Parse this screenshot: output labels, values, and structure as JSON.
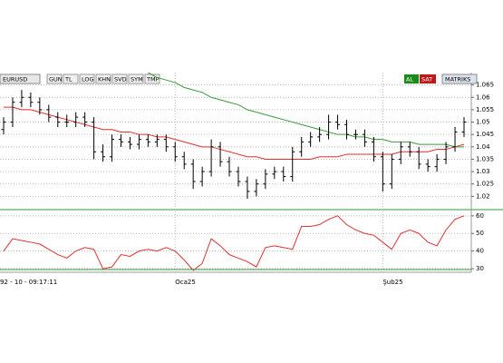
{
  "toolbar": {
    "symbol": "EURUSD",
    "buttons": [
      "GUN",
      "TL",
      "LOG",
      "KHN",
      "SVD",
      "SYM",
      "TMP"
    ],
    "actions": [
      "AL",
      "SAT"
    ],
    "brand": "MATRIKS"
  },
  "status": "92 - 10 - 09:17:11",
  "chart_data": [
    {
      "type": "ohlc",
      "color": "#000000",
      "categories": [
        null,
        null,
        null,
        null,
        null,
        null,
        null,
        null,
        null,
        null,
        null,
        null,
        null,
        null,
        null,
        null,
        null,
        null,
        null,
        "Oca25",
        null,
        null,
        null,
        null,
        null,
        null,
        null,
        null,
        null,
        null,
        null,
        null,
        null,
        null,
        null,
        null,
        null,
        null,
        null,
        null,
        null,
        null,
        "Şub25",
        null,
        null,
        null,
        null,
        null,
        null,
        null,
        null,
        null
      ],
      "open": [
        1.047,
        1.05,
        1.058,
        1.06,
        1.058,
        1.055,
        1.052,
        1.05,
        1.05,
        1.052,
        1.05,
        1.038,
        1.036,
        1.043,
        1.042,
        1.041,
        1.043,
        1.042,
        1.043,
        1.04,
        1.036,
        1.033,
        1.026,
        1.03,
        1.04,
        1.034,
        1.03,
        1.026,
        1.022,
        1.025,
        1.029,
        1.03,
        1.028,
        1.038,
        1.042,
        1.044,
        1.045,
        1.05,
        1.049,
        1.045,
        1.045,
        1.042,
        1.036,
        1.025,
        1.035,
        1.04,
        1.038,
        1.033,
        1.032,
        1.035,
        1.04,
        1.046
      ],
      "high": [
        1.052,
        1.06,
        1.063,
        1.062,
        1.06,
        1.057,
        1.054,
        1.053,
        1.054,
        1.054,
        1.052,
        1.041,
        1.045,
        1.045,
        1.044,
        1.045,
        1.045,
        1.045,
        1.045,
        1.042,
        1.038,
        1.035,
        1.032,
        1.043,
        1.042,
        1.036,
        1.032,
        1.028,
        1.027,
        1.031,
        1.032,
        1.032,
        1.04,
        1.044,
        1.046,
        1.048,
        1.053,
        1.053,
        1.051,
        1.047,
        1.047,
        1.044,
        1.038,
        1.037,
        1.042,
        1.042,
        1.04,
        1.035,
        1.037,
        1.042,
        1.048,
        1.052
      ],
      "low": [
        1.045,
        1.048,
        1.056,
        1.056,
        1.053,
        1.05,
        1.048,
        1.048,
        1.048,
        1.048,
        1.035,
        1.034,
        1.034,
        1.04,
        1.039,
        1.039,
        1.04,
        1.04,
        1.038,
        1.034,
        1.031,
        1.023,
        1.024,
        1.028,
        1.032,
        1.028,
        1.024,
        1.019,
        1.02,
        1.023,
        1.027,
        1.026,
        1.026,
        1.036,
        1.04,
        1.042,
        1.043,
        1.047,
        1.043,
        1.043,
        1.04,
        1.034,
        1.022,
        1.023,
        1.033,
        1.036,
        1.031,
        1.03,
        1.03,
        1.033,
        1.038,
        1.044
      ],
      "close": [
        1.05,
        1.058,
        1.06,
        1.058,
        1.055,
        1.052,
        1.05,
        1.05,
        1.052,
        1.05,
        1.038,
        1.036,
        1.043,
        1.042,
        1.041,
        1.043,
        1.042,
        1.043,
        1.04,
        1.036,
        1.033,
        1.026,
        1.03,
        1.04,
        1.034,
        1.03,
        1.026,
        1.022,
        1.025,
        1.029,
        1.03,
        1.028,
        1.038,
        1.042,
        1.044,
        1.045,
        1.05,
        1.049,
        1.045,
        1.045,
        1.042,
        1.036,
        1.025,
        1.035,
        1.04,
        1.038,
        1.033,
        1.032,
        1.035,
        1.04,
        1.046,
        1.05
      ],
      "lines": [
        {
          "color": "#e03030",
          "values": [
            1.056,
            1.056,
            1.055,
            1.055,
            1.054,
            1.053,
            1.052,
            1.051,
            1.05,
            1.049,
            1.048,
            1.047,
            1.047,
            1.046,
            1.046,
            1.045,
            1.045,
            1.044,
            1.044,
            1.043,
            1.042,
            1.041,
            1.04,
            1.04,
            1.039,
            1.038,
            1.037,
            1.036,
            1.036,
            1.035,
            1.035,
            1.035,
            1.035,
            1.035,
            1.035,
            1.036,
            1.036,
            1.036,
            1.037,
            1.037,
            1.037,
            1.037,
            1.037,
            1.037,
            1.038,
            1.038,
            1.038,
            1.038,
            1.039,
            1.039,
            1.04,
            1.041
          ]
        },
        {
          "color": "#3a9a3a",
          "values": [
            null,
            null,
            null,
            null,
            null,
            null,
            null,
            null,
            null,
            null,
            null,
            null,
            null,
            null,
            null,
            null,
            1.07,
            1.068,
            1.067,
            1.066,
            1.064,
            1.063,
            1.062,
            1.06,
            1.059,
            1.058,
            1.057,
            1.055,
            1.054,
            1.053,
            1.052,
            1.051,
            1.05,
            1.049,
            1.048,
            1.047,
            1.046,
            1.045,
            1.045,
            1.044,
            1.044,
            1.043,
            1.043,
            1.042,
            1.042,
            1.042,
            1.041,
            1.041,
            1.041,
            1.041,
            1.04,
            1.04
          ]
        }
      ],
      "ylim": [
        1.015,
        1.07
      ],
      "yticks": [
        1.02,
        1.025,
        1.03,
        1.035,
        1.04,
        1.045,
        1.05,
        1.055,
        1.06,
        1.065
      ],
      "grid": true
    },
    {
      "type": "line",
      "color": "#e03030",
      "values": [
        40,
        47,
        46,
        45,
        44,
        41,
        38,
        36,
        40,
        42,
        41,
        30,
        31,
        38,
        37,
        40,
        41,
        40,
        42,
        40,
        35,
        29,
        33,
        47,
        43,
        38,
        36,
        34,
        31,
        42,
        43,
        42,
        41,
        54,
        54,
        55,
        58,
        60,
        55,
        52,
        50,
        49,
        45,
        41,
        50,
        52,
        50,
        45,
        43,
        52,
        58,
        60
      ],
      "ylim": [
        29,
        63
      ],
      "yticks": [
        30,
        40,
        50,
        60
      ],
      "grid": true
    }
  ]
}
